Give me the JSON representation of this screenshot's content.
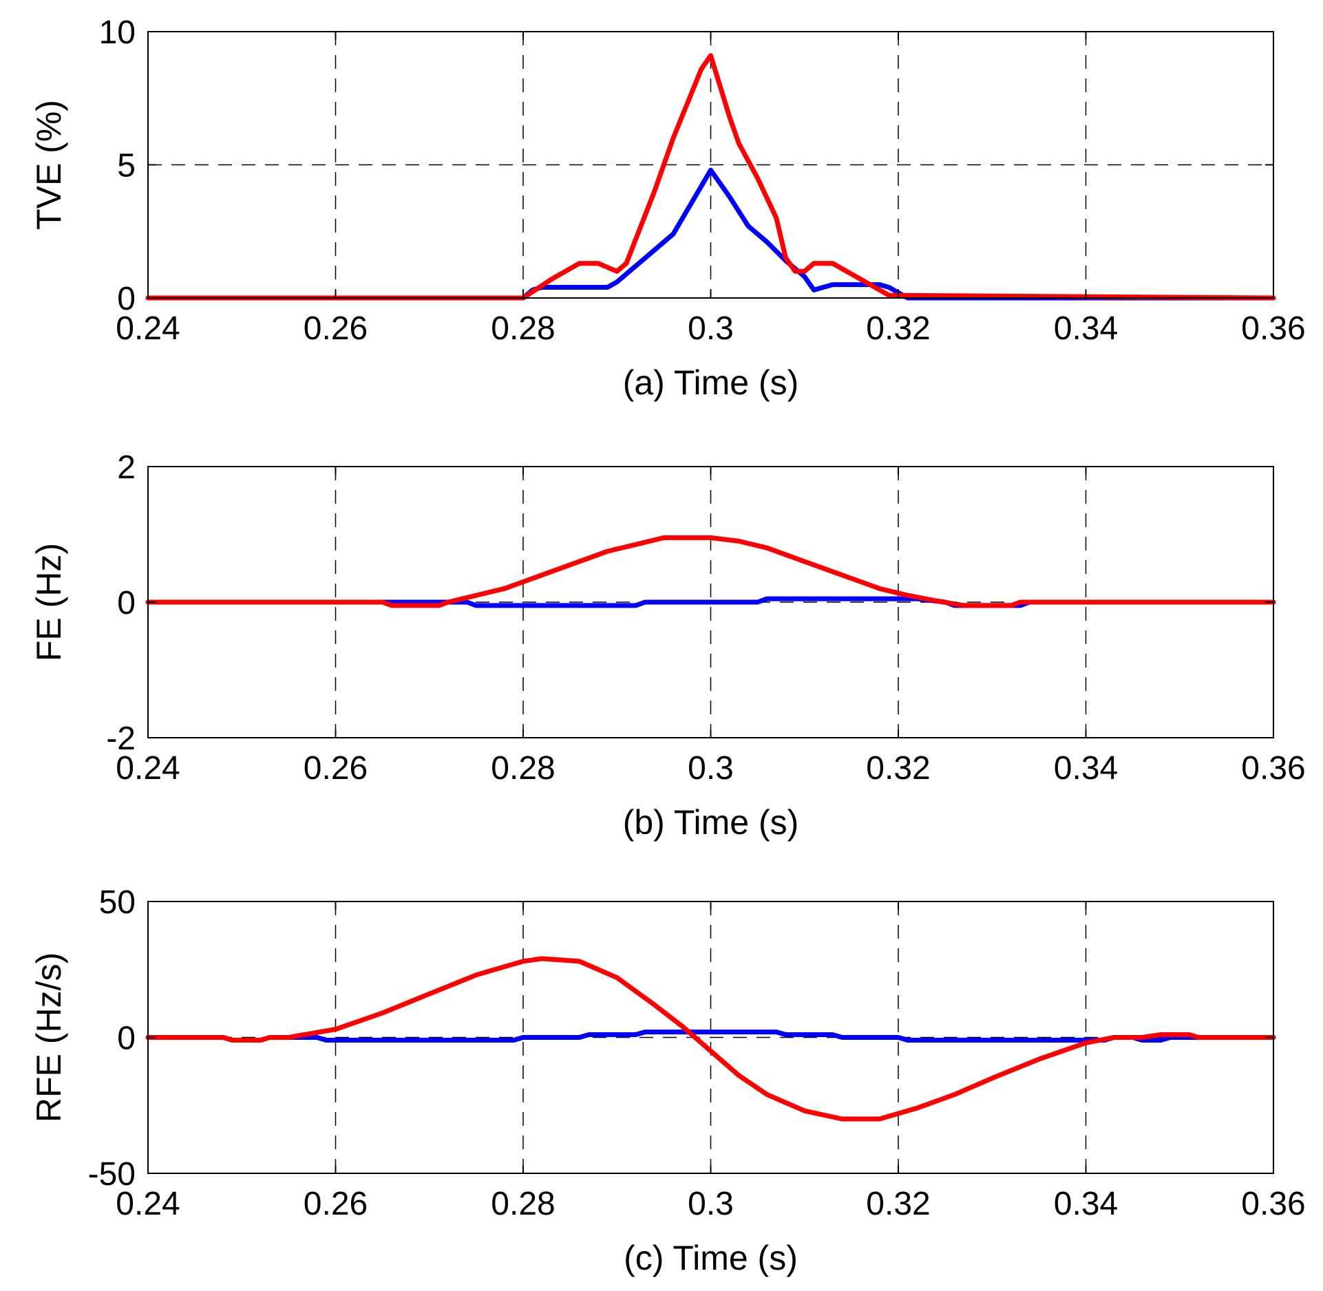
{
  "chart_data": [
    {
      "type": "line",
      "id": "a",
      "xlabel": "(a) Time (s)",
      "ylabel": "TVE (%)",
      "xlim": [
        0.24,
        0.36
      ],
      "ylim": [
        0,
        10
      ],
      "xticks": [
        0.24,
        0.26,
        0.28,
        0.3,
        0.32,
        0.34,
        0.36
      ],
      "xtick_labels": [
        "0.24",
        "0.26",
        "0.28",
        "0.3",
        "0.32",
        "0.34",
        "0.36"
      ],
      "yticks": [
        0,
        5,
        10
      ],
      "ytick_labels": [
        "0",
        "5",
        "10"
      ],
      "grid": true,
      "series": [
        {
          "name": "blue",
          "color": "#0000ff",
          "x": [
            0.24,
            0.28,
            0.281,
            0.282,
            0.289,
            0.29,
            0.292,
            0.296,
            0.3,
            0.302,
            0.304,
            0.306,
            0.308,
            0.31,
            0.311,
            0.313,
            0.318,
            0.319,
            0.32,
            0.321,
            0.36
          ],
          "y": [
            0,
            0,
            0.3,
            0.4,
            0.4,
            0.6,
            1.2,
            2.4,
            4.8,
            3.8,
            2.7,
            2.1,
            1.4,
            0.8,
            0.3,
            0.5,
            0.5,
            0.4,
            0.2,
            0,
            0
          ]
        },
        {
          "name": "red",
          "color": "#ff0000",
          "x": [
            0.24,
            0.28,
            0.283,
            0.286,
            0.288,
            0.29,
            0.291,
            0.292,
            0.294,
            0.296,
            0.299,
            0.3,
            0.302,
            0.303,
            0.305,
            0.307,
            0.308,
            0.309,
            0.31,
            0.311,
            0.313,
            0.315,
            0.317,
            0.319,
            0.36
          ],
          "y": [
            0,
            0,
            0.7,
            1.3,
            1.3,
            1.0,
            1.3,
            2.2,
            4.0,
            6.0,
            8.6,
            9.1,
            6.8,
            5.8,
            4.5,
            3.0,
            1.5,
            1.0,
            1.0,
            1.3,
            1.3,
            0.9,
            0.5,
            0.1,
            0
          ]
        }
      ]
    },
    {
      "type": "line",
      "id": "b",
      "xlabel": "(b) Time (s)",
      "ylabel": "FE (Hz)",
      "xlim": [
        0.24,
        0.36
      ],
      "ylim": [
        -2,
        2
      ],
      "xticks": [
        0.24,
        0.26,
        0.28,
        0.3,
        0.32,
        0.34,
        0.36
      ],
      "xtick_labels": [
        "0.24",
        "0.26",
        "0.28",
        "0.3",
        "0.32",
        "0.34",
        "0.36"
      ],
      "yticks": [
        -2,
        0,
        2
      ],
      "ytick_labels": [
        "-2",
        "0",
        "2"
      ],
      "grid": true,
      "series": [
        {
          "name": "blue",
          "color": "#0000ff",
          "x": [
            0.24,
            0.265,
            0.274,
            0.275,
            0.292,
            0.293,
            0.305,
            0.306,
            0.322,
            0.325,
            0.326,
            0.333,
            0.334,
            0.36
          ],
          "y": [
            0,
            0,
            0,
            -0.05,
            -0.05,
            0,
            0,
            0.05,
            0.05,
            0,
            -0.05,
            -0.05,
            0,
            0
          ]
        },
        {
          "name": "red",
          "color": "#ff0000",
          "x": [
            0.24,
            0.265,
            0.266,
            0.271,
            0.272,
            0.275,
            0.278,
            0.28,
            0.283,
            0.286,
            0.289,
            0.292,
            0.295,
            0.3,
            0.303,
            0.306,
            0.309,
            0.312,
            0.315,
            0.318,
            0.321,
            0.324,
            0.327,
            0.328,
            0.332,
            0.333,
            0.36
          ],
          "y": [
            0,
            0,
            -0.05,
            -0.05,
            0,
            0.1,
            0.2,
            0.3,
            0.45,
            0.6,
            0.75,
            0.85,
            0.95,
            0.95,
            0.9,
            0.8,
            0.65,
            0.5,
            0.35,
            0.2,
            0.1,
            0.02,
            -0.05,
            -0.05,
            -0.05,
            0,
            0
          ]
        }
      ]
    },
    {
      "type": "line",
      "id": "c",
      "xlabel": "(c) Time (s)",
      "ylabel": "RFE (Hz/s)",
      "xlim": [
        0.24,
        0.36
      ],
      "ylim": [
        -50,
        50
      ],
      "xticks": [
        0.24,
        0.26,
        0.28,
        0.3,
        0.32,
        0.34,
        0.36
      ],
      "xtick_labels": [
        "0.24",
        "0.26",
        "0.28",
        "0.3",
        "0.32",
        "0.34",
        "0.36"
      ],
      "yticks": [
        -50,
        0,
        50
      ],
      "ytick_labels": [
        "-50",
        "0",
        "50"
      ],
      "grid": true,
      "series": [
        {
          "name": "blue",
          "color": "#0000ff",
          "x": [
            0.24,
            0.248,
            0.249,
            0.252,
            0.253,
            0.258,
            0.259,
            0.279,
            0.28,
            0.286,
            0.287,
            0.292,
            0.293,
            0.307,
            0.308,
            0.313,
            0.314,
            0.32,
            0.321,
            0.342,
            0.343,
            0.345,
            0.346,
            0.348,
            0.349,
            0.351,
            0.352,
            0.36
          ],
          "y": [
            0,
            0,
            -1,
            -1,
            0,
            0,
            -1,
            -1,
            0,
            0,
            1,
            1,
            2,
            2,
            1,
            1,
            0,
            0,
            -1,
            -1,
            0,
            0,
            -1,
            -1,
            0,
            0,
            0,
            0
          ]
        },
        {
          "name": "red",
          "color": "#ff0000",
          "x": [
            0.24,
            0.248,
            0.249,
            0.252,
            0.253,
            0.255,
            0.26,
            0.265,
            0.27,
            0.275,
            0.28,
            0.282,
            0.286,
            0.29,
            0.294,
            0.297,
            0.3,
            0.303,
            0.306,
            0.31,
            0.314,
            0.318,
            0.322,
            0.326,
            0.33,
            0.335,
            0.34,
            0.343,
            0.346,
            0.348,
            0.351,
            0.352,
            0.36
          ],
          "y": [
            0,
            0,
            -1,
            -1,
            0,
            0,
            3,
            9,
            16,
            23,
            28,
            29,
            28,
            22,
            12,
            4,
            -5,
            -14,
            -21,
            -27,
            -30,
            -30,
            -26,
            -21,
            -15,
            -8,
            -2,
            0,
            0,
            1,
            1,
            0,
            0
          ]
        }
      ]
    }
  ]
}
